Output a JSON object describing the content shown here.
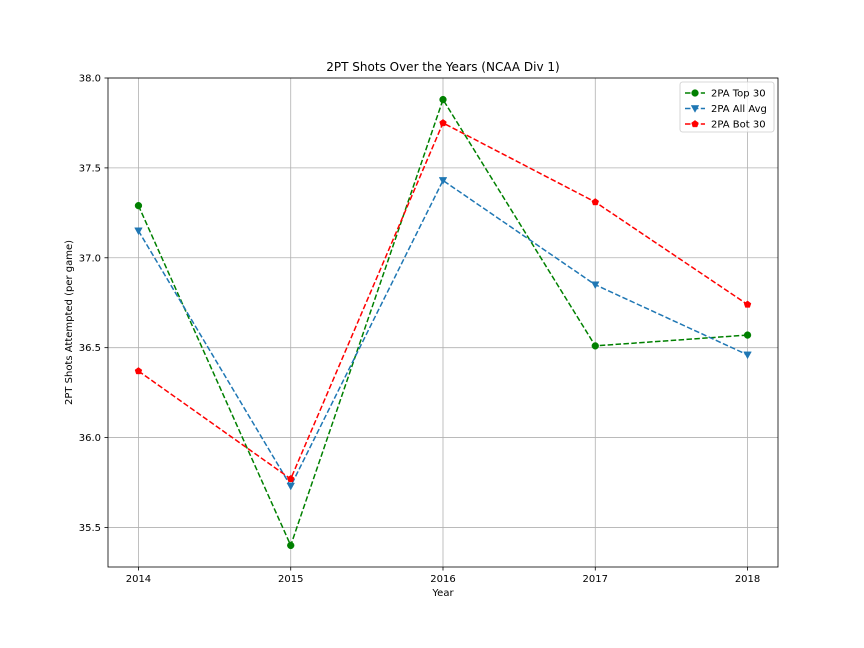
{
  "chart_data": {
    "type": "line",
    "title": "2PT Shots Over the Years (NCAA Div 1)",
    "xlabel": "Year",
    "ylabel": "2PT Shots Attempted (per game)",
    "x": [
      "2014",
      "2015",
      "2016",
      "2017",
      "2018"
    ],
    "xlim": [
      2013.8,
      2018.2
    ],
    "ylim": [
      35.28,
      38.0
    ],
    "yticks": [
      "35.5",
      "36.0",
      "36.5",
      "37.0",
      "37.5",
      "38.0"
    ],
    "grid": true,
    "legend_position": "top-right",
    "series": [
      {
        "name": "2PA Top 30",
        "color": "#008000",
        "marker": "circle",
        "linestyle": "dashed",
        "values": [
          37.29,
          35.4,
          37.88,
          36.51,
          36.57
        ]
      },
      {
        "name": "2PA All Avg",
        "color": "#1f77b4",
        "marker": "triangle-down",
        "linestyle": "dashed",
        "values": [
          37.15,
          35.73,
          37.43,
          36.85,
          36.46
        ]
      },
      {
        "name": "2PA Bot 30",
        "color": "#ff0000",
        "marker": "pentagon",
        "linestyle": "dashed",
        "values": [
          36.37,
          35.77,
          37.75,
          37.31,
          36.74
        ]
      }
    ]
  }
}
